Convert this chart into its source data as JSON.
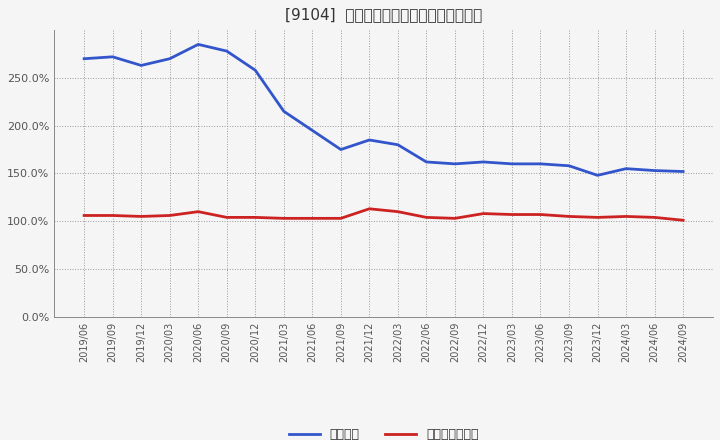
{
  "title": "[9104]  固定比率、固定長期適合率の推移",
  "x_labels": [
    "2019/06",
    "2019/09",
    "2019/12",
    "2020/03",
    "2020/06",
    "2020/09",
    "2020/12",
    "2021/03",
    "2021/06",
    "2021/09",
    "2021/12",
    "2022/03",
    "2022/06",
    "2022/09",
    "2022/12",
    "2023/03",
    "2023/06",
    "2023/09",
    "2023/12",
    "2024/03",
    "2024/06",
    "2024/09"
  ],
  "fixed_ratio": [
    270,
    272,
    263,
    270,
    285,
    278,
    258,
    215,
    195,
    175,
    185,
    180,
    162,
    160,
    162,
    160,
    160,
    158,
    148,
    155,
    153,
    152
  ],
  "fixed_long_ratio": [
    106,
    106,
    105,
    106,
    110,
    104,
    104,
    103,
    103,
    103,
    113,
    110,
    104,
    103,
    108,
    107,
    107,
    105,
    104,
    105,
    104,
    101
  ],
  "blue_color": "#3355cc",
  "red_color": "#cc2222",
  "bg_color": "#f5f5f5",
  "grid_color": "#999999",
  "title_color": "#333333",
  "ylim": [
    0,
    300
  ],
  "yticks": [
    0,
    50,
    100,
    150,
    200,
    250
  ],
  "legend_labels": [
    "固定比率",
    "固定長期適合率"
  ]
}
